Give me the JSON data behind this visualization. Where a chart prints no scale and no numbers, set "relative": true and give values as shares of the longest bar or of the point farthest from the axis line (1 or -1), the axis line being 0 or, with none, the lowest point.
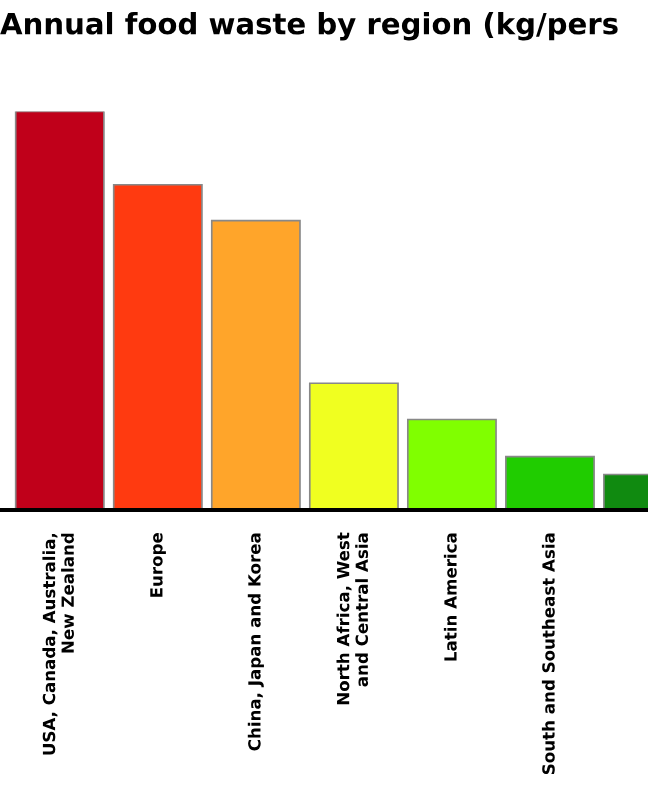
{
  "chart_data": {
    "type": "bar",
    "title": "Annual food waste by region (kg/pers",
    "relative": true,
    "tick_labels": "x",
    "grid": false,
    "legend": false,
    "categories": [
      "USA, Canada, Australia,\nNew Zealand",
      "Europe",
      "China, Japan and Korea",
      "North Africa, West\nand Central Asia",
      "Latin America",
      "South and Southeast Asia",
      null
    ],
    "values": [
      1,
      0.816,
      0.726,
      0.318,
      0.227,
      0.134,
      0.089
    ],
    "colors": [
      "#c0001a",
      "#ff3a10",
      "#ffa52a",
      "#f0ff20",
      "#80ff00",
      "#20cc00",
      "#108a10"
    ]
  }
}
